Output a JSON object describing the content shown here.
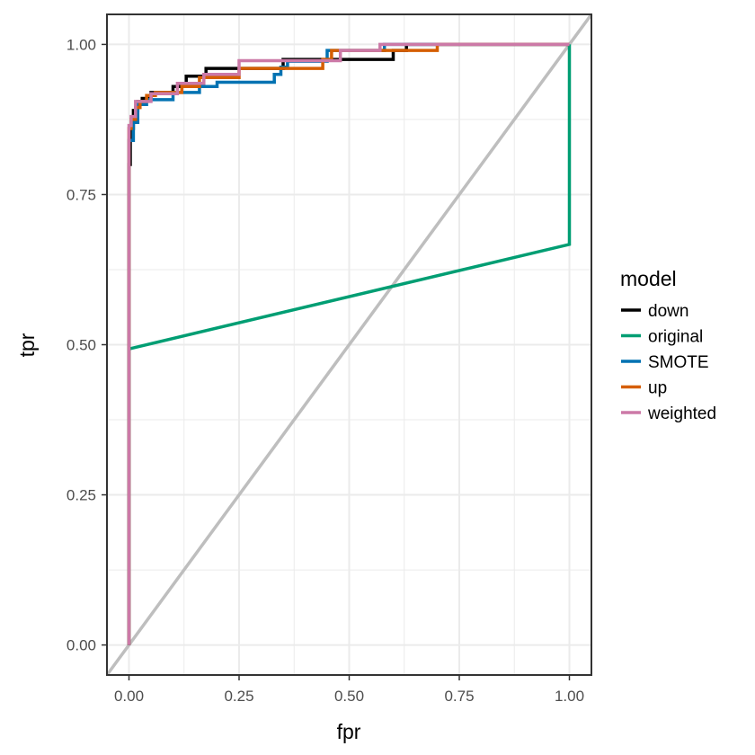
{
  "chart_data": {
    "type": "line",
    "xlabel": "fpr",
    "ylabel": "tpr",
    "xlim": [
      -0.05,
      1.05
    ],
    "ylim": [
      -0.05,
      1.05
    ],
    "x_ticks": [
      0.0,
      0.25,
      0.5,
      0.75,
      1.0
    ],
    "x_tick_labels": [
      "0.00",
      "0.25",
      "0.50",
      "0.75",
      "1.00"
    ],
    "y_ticks": [
      0.0,
      0.25,
      0.5,
      0.75,
      1.0
    ],
    "y_tick_labels": [
      "0.00",
      "0.25",
      "0.50",
      "0.75",
      "1.00"
    ],
    "grid": true,
    "legend": {
      "title": "model",
      "position": "right"
    },
    "reference_line": {
      "x": [
        0,
        1
      ],
      "y": [
        0,
        1
      ],
      "color": "#bebebe"
    },
    "series": [
      {
        "name": "down",
        "color": "#000000",
        "x": [
          0.0,
          0.0,
          0.003,
          0.003,
          0.01,
          0.01,
          0.02,
          0.02,
          0.03,
          0.03,
          0.05,
          0.05,
          0.1,
          0.1,
          0.13,
          0.13,
          0.175,
          0.175,
          0.35,
          0.35,
          0.6,
          0.6,
          0.63,
          0.63,
          1.0
        ],
        "y": [
          0.0,
          0.8,
          0.8,
          0.86,
          0.86,
          0.89,
          0.89,
          0.905,
          0.905,
          0.91,
          0.91,
          0.92,
          0.92,
          0.93,
          0.93,
          0.947,
          0.947,
          0.96,
          0.96,
          0.975,
          0.975,
          0.99,
          0.99,
          1.0,
          1.0
        ]
      },
      {
        "name": "original",
        "color": "#009e73",
        "x": [
          0.0,
          0.0,
          1.0,
          1.0
        ],
        "y": [
          0.0,
          0.493,
          0.667,
          1.0
        ]
      },
      {
        "name": "SMOTE",
        "color": "#0072b2",
        "x": [
          0.0,
          0.0,
          0.01,
          0.01,
          0.02,
          0.02,
          0.04,
          0.04,
          0.1,
          0.1,
          0.16,
          0.16,
          0.2,
          0.2,
          0.33,
          0.33,
          0.345,
          0.345,
          0.36,
          0.36,
          0.45,
          0.45,
          0.58,
          0.58,
          1.0
        ],
        "y": [
          0.0,
          0.84,
          0.84,
          0.87,
          0.87,
          0.9,
          0.9,
          0.908,
          0.908,
          0.92,
          0.92,
          0.93,
          0.93,
          0.937,
          0.937,
          0.95,
          0.95,
          0.962,
          0.962,
          0.972,
          0.972,
          0.99,
          0.99,
          1.0,
          1.0
        ]
      },
      {
        "name": "up",
        "color": "#d55e00",
        "x": [
          0.0,
          0.0,
          0.005,
          0.005,
          0.015,
          0.015,
          0.025,
          0.025,
          0.04,
          0.04,
          0.06,
          0.06,
          0.12,
          0.12,
          0.16,
          0.16,
          0.25,
          0.25,
          0.44,
          0.44,
          0.46,
          0.46,
          0.7,
          0.7,
          1.0
        ],
        "y": [
          0.0,
          0.86,
          0.86,
          0.875,
          0.875,
          0.895,
          0.895,
          0.905,
          0.905,
          0.915,
          0.915,
          0.92,
          0.92,
          0.93,
          0.93,
          0.945,
          0.945,
          0.96,
          0.96,
          0.975,
          0.975,
          0.99,
          0.99,
          1.0,
          1.0
        ]
      },
      {
        "name": "weighted",
        "color": "#cc79a7",
        "x": [
          0.0,
          0.0,
          0.005,
          0.005,
          0.015,
          0.015,
          0.05,
          0.05,
          0.11,
          0.11,
          0.17,
          0.17,
          0.25,
          0.25,
          0.48,
          0.48,
          0.57,
          0.57,
          1.0
        ],
        "y": [
          0.0,
          0.865,
          0.865,
          0.88,
          0.88,
          0.905,
          0.905,
          0.918,
          0.918,
          0.935,
          0.935,
          0.95,
          0.95,
          0.973,
          0.973,
          0.99,
          0.99,
          1.0,
          1.0
        ]
      }
    ]
  }
}
